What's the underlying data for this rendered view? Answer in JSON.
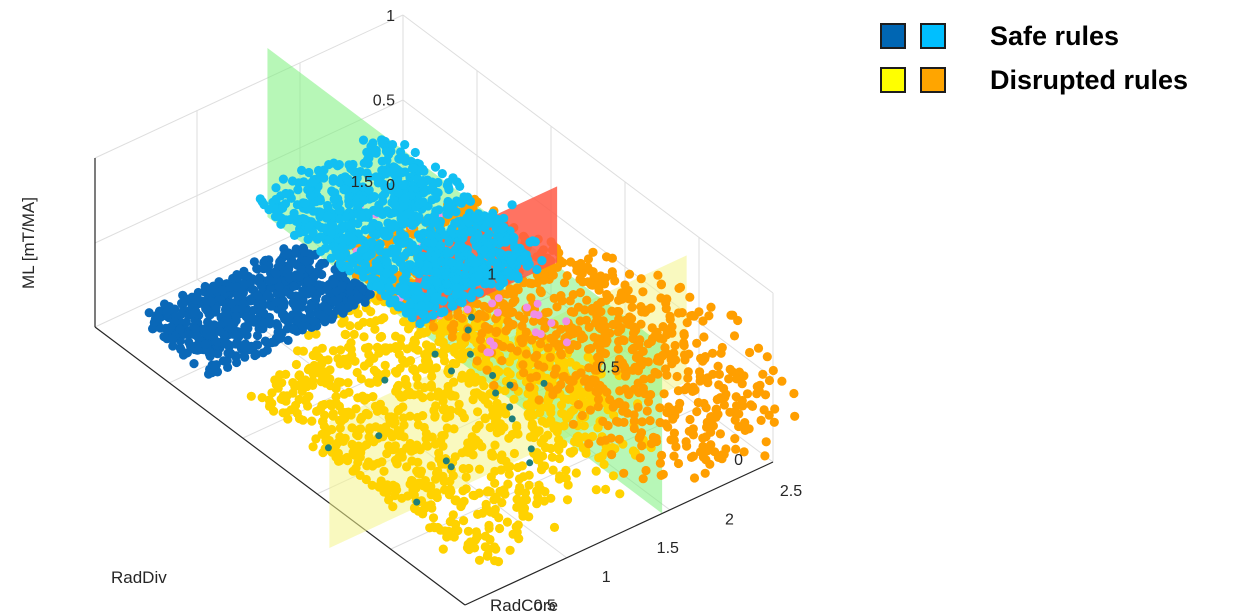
{
  "legend": {
    "items": [
      {
        "label": "Safe rules",
        "colors": [
          "#0066b3",
          "#00bfff"
        ]
      },
      {
        "label": "Disrupted rules",
        "colors": [
          "#ffff00",
          "#ffa500"
        ]
      }
    ]
  },
  "colors": {
    "safe_core": "#0a68b8",
    "safe_div": "#12bff2",
    "disrupted_core": "#ffd200",
    "disrupted_div": "#ff9f00",
    "misc_pink": "#f08ee6",
    "misc_teal": "#1f7f7a",
    "plane_green": "#7cf07c",
    "plane_yellow": "#f4f48a",
    "plane_red": "#ff5a46",
    "grid": "#dedede",
    "axis": "#262626"
  },
  "chart_data": {
    "type": "scatter",
    "dimensions": 3,
    "xlabel": "RadCore",
    "ylabel": "RadDiv",
    "zlabel": "ML [mT/MA]",
    "xlim": [
      0,
      2.5
    ],
    "ylim": [
      0,
      1.5
    ],
    "zlim": [
      0,
      1
    ],
    "xticks": [
      "0",
      "0.5",
      "1",
      "1.5",
      "2",
      "2.5"
    ],
    "yticks": [
      "0",
      "0.5",
      "1",
      "1.5"
    ],
    "zticks": [
      "0",
      "0.5",
      "1"
    ],
    "grid": true,
    "legend_position": "top-right",
    "planes": [
      {
        "orientation": "constant RadCore",
        "at": 1.6,
        "color": "green"
      },
      {
        "orientation": "constant RadDiv",
        "at": 0.4,
        "color": "yellow"
      },
      {
        "orientation": "constant RadDiv",
        "at": 1.0,
        "color": "red"
      }
    ],
    "series": [
      {
        "name": "",
        "color": "#0066b3",
        "clusters": [
          {
            "x": [
              0.3,
              1.6
            ],
            "y": [
              1.15,
              1.45
            ],
            "z": [
              0,
              0.05
            ]
          }
        ]
      },
      {
        "name": "",
        "color": "#00bfff",
        "clusters": [
          {
            "x": [
              1.6,
              2.7
            ],
            "y": [
              1.0,
              1.7
            ],
            "z": [
              0,
              0.12
            ]
          }
        ]
      },
      {
        "name": "",
        "color": "#ffd200",
        "clusters": [
          {
            "x": [
              0.2,
              1.6
            ],
            "y": [
              0.05,
              1.0
            ],
            "z": [
              0.05,
              0.9
            ]
          }
        ]
      },
      {
        "name": "",
        "color": "#ffa500",
        "clusters": [
          {
            "x": [
              1.6,
              2.7
            ],
            "y": [
              0.0,
              1.3
            ],
            "z": [
              0.0,
              0.5
            ]
          }
        ]
      }
    ]
  }
}
